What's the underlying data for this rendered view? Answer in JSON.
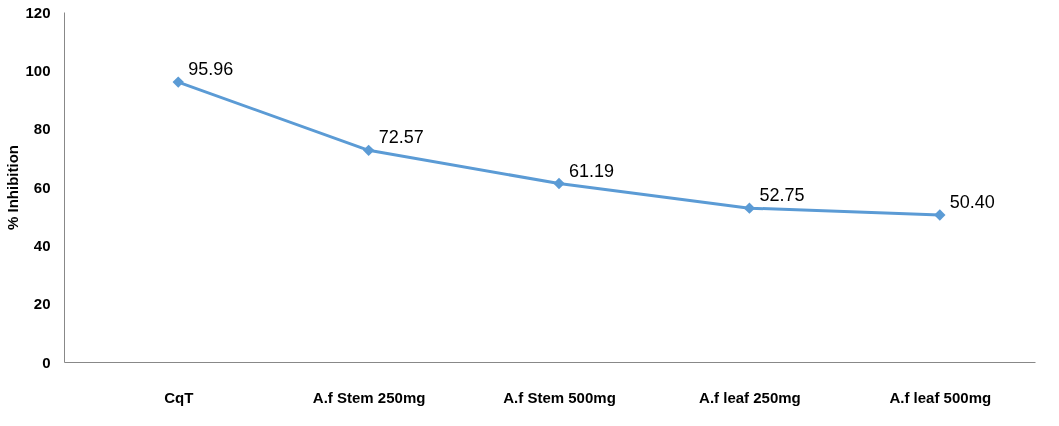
{
  "chart_data": {
    "type": "line",
    "ylabel": "% Inhibition",
    "categories": [
      "CqT",
      "A.f Stem 250mg",
      "A.f Stem 500mg",
      "A.f leaf 250mg",
      "A.f leaf 500mg"
    ],
    "series": [
      {
        "color": "#5b9bd5",
        "values": [
          95.96,
          72.57,
          61.19,
          52.75,
          50.4
        ],
        "value_labels": [
          "95.96",
          "72.57",
          "61.19",
          "52.75",
          "50.40"
        ]
      }
    ],
    "ylim": [
      0,
      120
    ],
    "yticks": [
      0,
      20,
      40,
      60,
      80,
      100,
      120
    ],
    "marker": "diamond",
    "line_style": "solid",
    "grid": false
  }
}
